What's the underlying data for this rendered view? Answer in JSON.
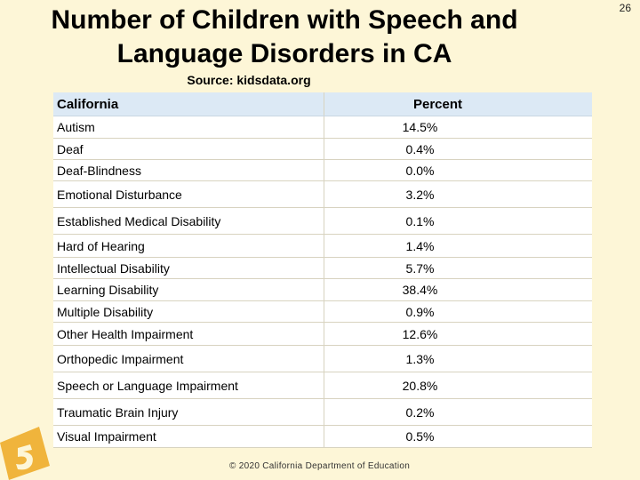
{
  "slide_number": "26",
  "title_line1": "Number of Children with Speech and",
  "title_line2": "Language Disorders in CA",
  "source": "Source: kidsdata.org",
  "table": {
    "header": {
      "col1": "California",
      "col2": "Percent"
    },
    "rows": [
      {
        "label": "Autism",
        "value": "14.5%"
      },
      {
        "label": "Deaf",
        "value": "0.4%"
      },
      {
        "label": "Deaf-Blindness",
        "value": "0.0%"
      },
      {
        "label": "Emotional Disturbance",
        "value": "3.2%"
      },
      {
        "label": "Established Medical Disability",
        "value": "0.1%"
      },
      {
        "label": "Hard of Hearing",
        "value": "1.4%"
      },
      {
        "label": "Intellectual Disability",
        "value": "5.7%"
      },
      {
        "label": "Learning Disability",
        "value": "38.4%"
      },
      {
        "label": "Multiple Disability",
        "value": "0.9%"
      },
      {
        "label": "Other Health Impairment",
        "value": "12.6%"
      },
      {
        "label": "Orthopedic Impairment",
        "value": "1.3%"
      },
      {
        "label": "Speech or Language Impairment",
        "value": "20.8%"
      },
      {
        "label": "Traumatic Brain Injury",
        "value": "0.2%"
      },
      {
        "label": "Visual Impairment",
        "value": "0.5%"
      }
    ]
  },
  "footer": "© 2020 California Department of Education",
  "colors": {
    "background": "#fdf6d7",
    "header_fill": "#dce9f5",
    "logo": "#f0b43c"
  },
  "logo_icon": "cde-logo-icon"
}
